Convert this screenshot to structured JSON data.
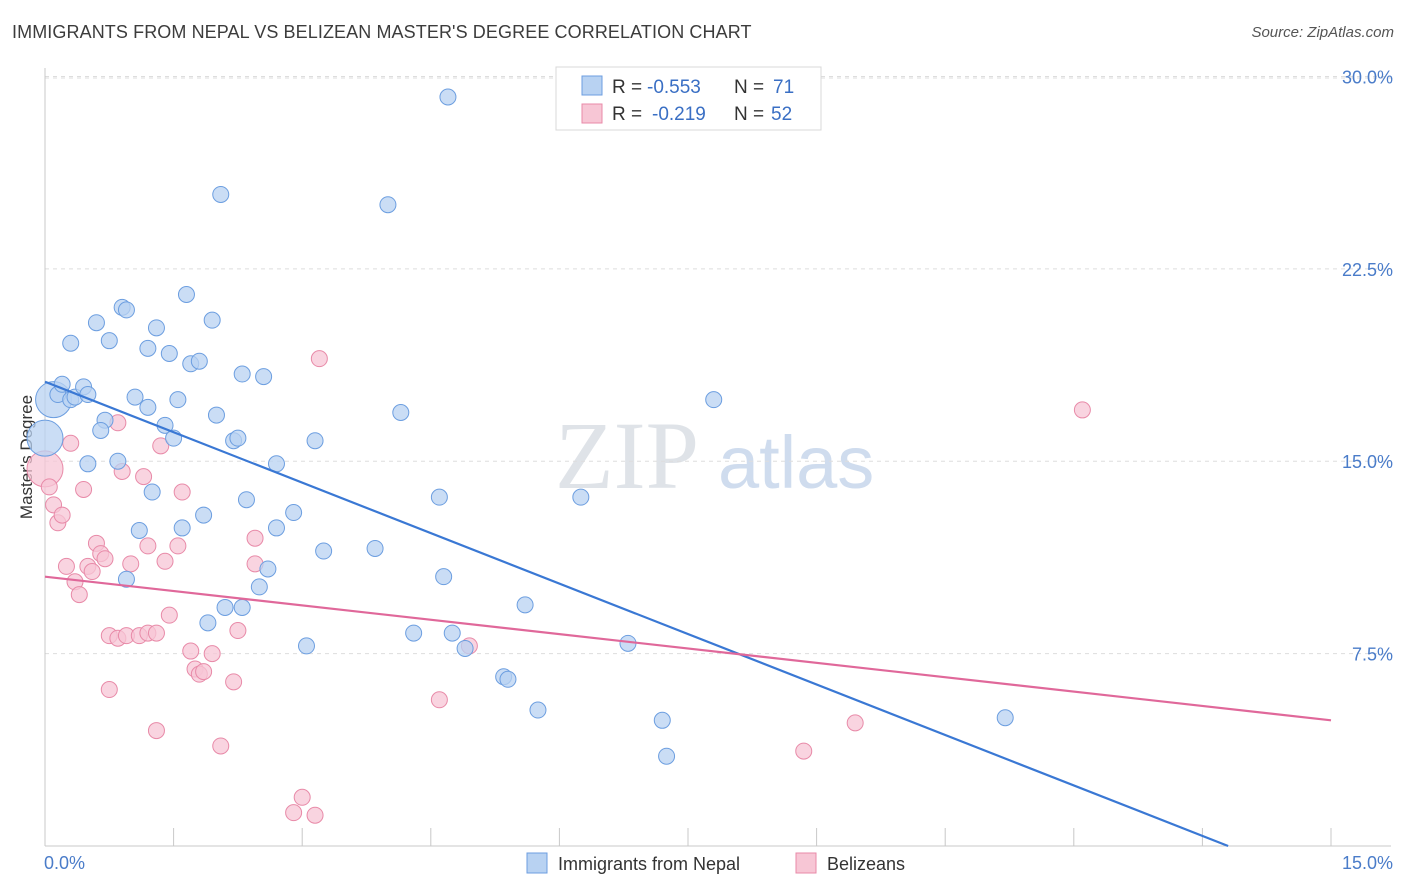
{
  "title": "IMMIGRANTS FROM NEPAL VS BELIZEAN MASTER'S DEGREE CORRELATION CHART",
  "source": "Source: ZipAtlas.com",
  "watermark": {
    "zip": "ZIP",
    "atlas": "atlas"
  },
  "colors": {
    "blue_fill": "#b8d2f2",
    "blue_stroke": "#6c9ee0",
    "blue_line": "#3a78d4",
    "pink_fill": "#f7c6d5",
    "pink_stroke": "#e88aa8",
    "pink_line": "#e0689a",
    "grid": "#dddddd",
    "tick_text": "#4a7cc9"
  },
  "legend": {
    "rows": [
      {
        "r_label": "R = ",
        "r_value": "-0.553",
        "n_label": "N = ",
        "n_value": "71"
      },
      {
        "r_label": "R = ",
        "r_value": "-0.219",
        "n_label": "N = ",
        "n_value": "52"
      }
    ]
  },
  "chart_data": {
    "type": "scatter",
    "title": "IMMIGRANTS FROM NEPAL VS BELIZEAN MASTER'S DEGREE CORRELATION CHART",
    "ylabel": "Master's Degree",
    "xlim": [
      0,
      15
    ],
    "ylim": [
      0,
      31.5
    ],
    "x_tick_labels": [
      "0.0%",
      "15.0%"
    ],
    "y_ticks": [
      7.5,
      15.0,
      22.5,
      30.0
    ],
    "y_tick_labels": [
      "7.5%",
      "15.0%",
      "22.5%",
      "30.0%"
    ],
    "series": [
      {
        "name": "Immigrants from Nepal",
        "color": "blue",
        "trend": {
          "x0": 0,
          "y0": 18.1,
          "x1": 13.8,
          "y1": 0
        },
        "points": [
          {
            "x": 0.0,
            "y": 15.9,
            "big": true
          },
          {
            "x": 0.1,
            "y": 17.4,
            "big": true
          },
          {
            "x": 0.15,
            "y": 17.6
          },
          {
            "x": 0.2,
            "y": 18.0
          },
          {
            "x": 0.3,
            "y": 17.4
          },
          {
            "x": 0.35,
            "y": 17.5
          },
          {
            "x": 0.45,
            "y": 17.9
          },
          {
            "x": 0.3,
            "y": 19.6
          },
          {
            "x": 0.6,
            "y": 20.4
          },
          {
            "x": 0.75,
            "y": 19.7
          },
          {
            "x": 0.9,
            "y": 21.0
          },
          {
            "x": 0.95,
            "y": 20.9
          },
          {
            "x": 1.2,
            "y": 19.4
          },
          {
            "x": 1.3,
            "y": 20.2
          },
          {
            "x": 1.65,
            "y": 21.5
          },
          {
            "x": 1.95,
            "y": 20.5
          },
          {
            "x": 1.45,
            "y": 19.2
          },
          {
            "x": 1.7,
            "y": 18.8
          },
          {
            "x": 1.8,
            "y": 18.9
          },
          {
            "x": 2.3,
            "y": 18.4
          },
          {
            "x": 2.55,
            "y": 18.3
          },
          {
            "x": 2.05,
            "y": 25.4
          },
          {
            "x": 4.0,
            "y": 25.0
          },
          {
            "x": 4.7,
            "y": 29.2
          },
          {
            "x": 1.05,
            "y": 17.5
          },
          {
            "x": 1.2,
            "y": 17.1
          },
          {
            "x": 1.55,
            "y": 17.4
          },
          {
            "x": 0.7,
            "y": 16.6
          },
          {
            "x": 0.65,
            "y": 16.2
          },
          {
            "x": 1.4,
            "y": 16.4
          },
          {
            "x": 1.5,
            "y": 15.9
          },
          {
            "x": 2.0,
            "y": 16.8
          },
          {
            "x": 2.2,
            "y": 15.8
          },
          {
            "x": 2.25,
            "y": 15.9
          },
          {
            "x": 3.15,
            "y": 15.8
          },
          {
            "x": 4.15,
            "y": 16.9
          },
          {
            "x": 7.8,
            "y": 17.4
          },
          {
            "x": 0.5,
            "y": 14.9
          },
          {
            "x": 0.85,
            "y": 15.0
          },
          {
            "x": 1.25,
            "y": 13.8
          },
          {
            "x": 2.7,
            "y": 14.9
          },
          {
            "x": 2.35,
            "y": 13.5
          },
          {
            "x": 1.85,
            "y": 12.9
          },
          {
            "x": 2.9,
            "y": 13.0
          },
          {
            "x": 4.6,
            "y": 13.6
          },
          {
            "x": 6.25,
            "y": 13.6
          },
          {
            "x": 1.1,
            "y": 12.3
          },
          {
            "x": 1.6,
            "y": 12.4
          },
          {
            "x": 2.7,
            "y": 12.4
          },
          {
            "x": 3.25,
            "y": 11.5
          },
          {
            "x": 3.85,
            "y": 11.6
          },
          {
            "x": 2.6,
            "y": 10.8
          },
          {
            "x": 0.95,
            "y": 10.4
          },
          {
            "x": 2.5,
            "y": 10.1
          },
          {
            "x": 4.65,
            "y": 10.5
          },
          {
            "x": 5.6,
            "y": 9.4
          },
          {
            "x": 2.1,
            "y": 9.3
          },
          {
            "x": 2.3,
            "y": 9.3
          },
          {
            "x": 1.9,
            "y": 8.7
          },
          {
            "x": 4.3,
            "y": 8.3
          },
          {
            "x": 4.75,
            "y": 8.3
          },
          {
            "x": 4.9,
            "y": 7.7
          },
          {
            "x": 3.05,
            "y": 7.8
          },
          {
            "x": 6.8,
            "y": 7.9
          },
          {
            "x": 5.35,
            "y": 6.6
          },
          {
            "x": 5.4,
            "y": 6.5
          },
          {
            "x": 5.75,
            "y": 5.3
          },
          {
            "x": 7.2,
            "y": 4.9
          },
          {
            "x": 7.25,
            "y": 3.5
          },
          {
            "x": 11.2,
            "y": 5.0
          },
          {
            "x": 0.5,
            "y": 17.6
          }
        ]
      },
      {
        "name": "Belizeans",
        "color": "pink",
        "trend": {
          "x0": 0,
          "y0": 10.5,
          "x1": 15,
          "y1": 4.9
        },
        "points": [
          {
            "x": 0.0,
            "y": 14.7,
            "big": true
          },
          {
            "x": 0.05,
            "y": 14.0
          },
          {
            "x": 0.1,
            "y": 13.3
          },
          {
            "x": 0.15,
            "y": 12.6
          },
          {
            "x": 0.2,
            "y": 12.9
          },
          {
            "x": 0.3,
            "y": 15.7
          },
          {
            "x": 0.45,
            "y": 13.9
          },
          {
            "x": 0.6,
            "y": 11.8
          },
          {
            "x": 0.65,
            "y": 11.4
          },
          {
            "x": 0.7,
            "y": 11.2
          },
          {
            "x": 0.5,
            "y": 10.9
          },
          {
            "x": 0.55,
            "y": 10.7
          },
          {
            "x": 0.35,
            "y": 10.3
          },
          {
            "x": 0.4,
            "y": 9.8
          },
          {
            "x": 0.25,
            "y": 10.9
          },
          {
            "x": 0.85,
            "y": 16.5
          },
          {
            "x": 1.15,
            "y": 14.4
          },
          {
            "x": 0.9,
            "y": 14.6
          },
          {
            "x": 1.35,
            "y": 15.6
          },
          {
            "x": 1.6,
            "y": 13.8
          },
          {
            "x": 1.2,
            "y": 11.7
          },
          {
            "x": 1.55,
            "y": 11.7
          },
          {
            "x": 1.4,
            "y": 11.1
          },
          {
            "x": 1.0,
            "y": 11.0
          },
          {
            "x": 1.45,
            "y": 9.0
          },
          {
            "x": 0.75,
            "y": 8.2
          },
          {
            "x": 0.85,
            "y": 8.1
          },
          {
            "x": 0.95,
            "y": 8.2
          },
          {
            "x": 1.1,
            "y": 8.2
          },
          {
            "x": 1.2,
            "y": 8.3
          },
          {
            "x": 1.3,
            "y": 8.3
          },
          {
            "x": 1.7,
            "y": 7.6
          },
          {
            "x": 1.75,
            "y": 6.9
          },
          {
            "x": 1.8,
            "y": 6.7
          },
          {
            "x": 1.85,
            "y": 6.8
          },
          {
            "x": 1.95,
            "y": 7.5
          },
          {
            "x": 2.25,
            "y": 8.4
          },
          {
            "x": 2.45,
            "y": 12.0
          },
          {
            "x": 2.45,
            "y": 11.0
          },
          {
            "x": 2.2,
            "y": 6.4
          },
          {
            "x": 0.75,
            "y": 6.1
          },
          {
            "x": 1.3,
            "y": 4.5
          },
          {
            "x": 2.05,
            "y": 3.9
          },
          {
            "x": 3.2,
            "y": 19.0
          },
          {
            "x": 4.6,
            "y": 5.7
          },
          {
            "x": 4.95,
            "y": 7.8
          },
          {
            "x": 3.0,
            "y": 1.9
          },
          {
            "x": 2.9,
            "y": 1.3
          },
          {
            "x": 3.15,
            "y": 1.2
          },
          {
            "x": 8.85,
            "y": 3.7
          },
          {
            "x": 9.45,
            "y": 4.8
          },
          {
            "x": 12.1,
            "y": 17.0
          }
        ]
      }
    ]
  }
}
